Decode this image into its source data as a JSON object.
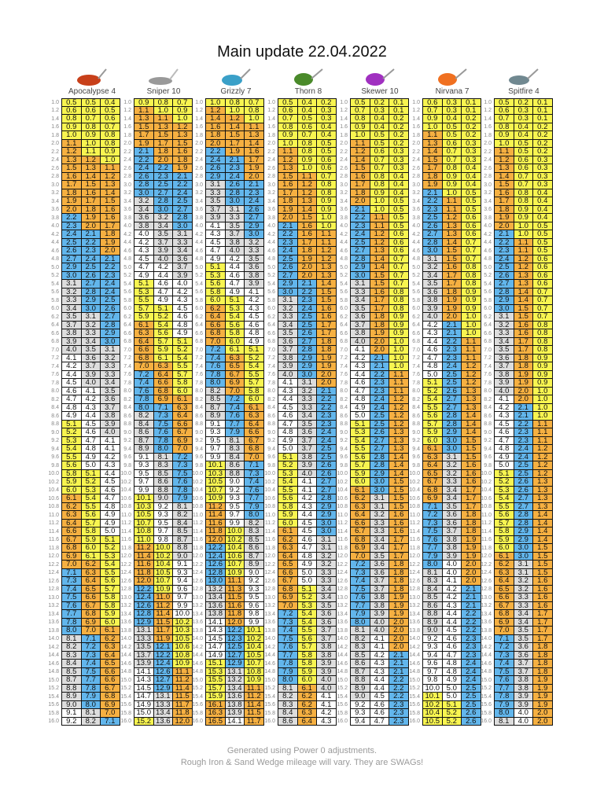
{
  "title": "Main update 22.04.2022",
  "clubs": [
    {
      "name": "Apocalypse 4",
      "icon": "driver-head-icon",
      "color": "#c8401a"
    },
    {
      "name": "Sniper 10",
      "icon": "wood-head-icon",
      "color": "#999999"
    },
    {
      "name": "Grizzly 7",
      "icon": "hybrid-head-icon",
      "color": "#3aa0c8"
    },
    {
      "name": "Thorn 8",
      "icon": "iron-head-icon",
      "color": "#4a8a2a"
    },
    {
      "name": "Skewer 10",
      "icon": "wedge-head-icon",
      "color": "#a030c0"
    },
    {
      "name": "Nirvana 7",
      "icon": "iron-head-icon",
      "color": "#f07020"
    },
    {
      "name": "Spitfire 4",
      "icon": "wedge-head-icon",
      "color": "#708890"
    }
  ],
  "row_labels": [
    "1.0",
    "1.2",
    "1.4",
    "1.6",
    "1.8",
    "2.0",
    "2.2",
    "2.4",
    "2.6",
    "2.8",
    "3.0",
    "3.2",
    "3.4",
    "3.6",
    "3.8",
    "4.0",
    "4.2",
    "4.4",
    "4.6",
    "4.8",
    "5.0",
    "5.2",
    "5.4",
    "5.6",
    "5.8",
    "6.0",
    "6.2",
    "6.4",
    "6.6",
    "6.8",
    "7.0",
    "7.2",
    "7.4",
    "7.6",
    "7.8",
    "8.0",
    "8.2",
    "8.4",
    "8.6",
    "8.8",
    "9.0",
    "9.2",
    "9.4",
    "9.6",
    "9.8",
    "10.0",
    "10.2",
    "10.4",
    "10.6",
    "10.8",
    "11.0",
    "11.2",
    "11.4",
    "11.6",
    "11.8",
    "12.0",
    "12.2",
    "12.4",
    "12.6",
    "12.8",
    "13.0",
    "13.2",
    "13.4",
    "13.6",
    "13.8",
    "14.0",
    "14.2",
    "14.4",
    "14.6",
    "14.8",
    "15.0",
    "15.2",
    "15.4",
    "15.6",
    "15.8",
    "16.0"
  ],
  "tables": [
    [
      "0.5y 0.5y 0.4y",
      "0.6y 0.6y 0.5y",
      "0.8y 0.7y 0.6y",
      "0.9y 0.8y 0.7y",
      "1.0y 0.9y 0.8y",
      "1.1o 1.0y 0.8y",
      "1.2o 1.1y 0.9y",
      "1.3o 1.2o 1.0y",
      "1.5o 1.3o 1.1o",
      "1.6o 1.4o 1.2o",
      "1.7o 1.5o 1.3o",
      "1.8o 1.6o 1.4o",
      "1.9o 1.7o 1.5o",
      "2.0o 1.8o 1.6o",
      "2.2b 1.9o 1.6o",
      "2.3b 2.0o 1.7o",
      "2.4b 2.1b 1.8o",
      "2.5b 2.2b 1.9o",
      "2.6b 2.3b 2.0o",
      "2.7b 2.4b 2.1b",
      "2.9b 2.5b 2.2b",
      "3.0b 2.6b 2.3b",
      "3.1g 2.7b 2.4b",
      "3.2g 2.8b 2.4b",
      "3.3g 2.9b 2.5b",
      "3.4g 3.0b 2.6b",
      "3.5g 3.1g 2.7b",
      "3.7g 3.2g 2.8b",
      "3.8g 3.3g 2.9b",
      "3.9g 3.4g 3.0b",
      "4.0g 3.5g 3.1g",
      "4.1w 3.6g 3.2g",
      "4.2w 3.7g 3.3g",
      "4.4w 3.9g 3.3g",
      "4.5w 4.0g 3.4g",
      "4.6w 4.1w 3.5g",
      "4.7w 4.2w 3.6g",
      "4.8w 4.3w 3.7g",
      "4.9w 4.4w 3.8g",
      "5.1y 4.5w 3.9g",
      "5.2y 4.6w 4.0g",
      "5.3y 4.7w 4.1w",
      "5.4y 4.8w 4.1w",
      "5.5y 4.9w 4.2w",
      "5.6y 5.0w 4.3w",
      "5.8y 5.1y 4.4w",
      "5.9y 5.2y 4.5w",
      "6.0y 5.3y 4.6w",
      "6.1o 5.4y 4.7w",
      "6.2o 5.5y 4.8w",
      "6.3o 5.6y 4.9w",
      "6.4o 5.7y 4.9w",
      "6.6o 5.8y 5.0w",
      "6.7o 5.9y 5.1y",
      "6.8o 6.0y 5.2y",
      "6.9o 6.1y 5.3y",
      "7.0o 6.2o 5.4y",
      "7.1b 6.3o 5.5y",
      "7.3b 6.4o 5.6y",
      "7.4b 6.5o 5.7y",
      "7.5b 6.6o 5.8y",
      "7.6b 6.7o 5.8y",
      "7.7b 6.8o 5.9y",
      "7.8b 6.9o 6.0y",
      "8.0b 7.0o 6.1o",
      "8.1g 7.1b 6.2o",
      "8.2g 7.2b 6.3o",
      "8.3g 7.3b 6.4o",
      "8.4g 7.4b 6.5o",
      "8.5g 7.5b 6.6o",
      "8.7g 7.7b 6.6o",
      "8.8g 7.8b 6.7o",
      "8.9g 7.9b 6.8o",
      "9.0g 8.0b 6.9o",
      "9.1w 8.1g 7.0o",
      "9.2w 8.2g 7.1b"
    ],
    [
      "0.9y 0.8y 0.7y",
      "1.1o 1.0y 0.9y",
      "1.3o 1.1o 1.0y",
      "1.5o 1.3o 1.2o",
      "1.7o 1.5o 1.3o",
      "1.9o 1.7o 1.5o",
      "2.1b 1.8o 1.6o",
      "2.2b 2.0o 1.8o",
      "2.4b 2.2b 1.9o",
      "2.6b 2.3b 2.1b",
      "2.8b 2.5b 2.2b",
      "3.0b 2.7b 2.4b",
      "3.2g 2.8b 2.5b",
      "3.4g 3.0b 2.7b",
      "3.6g 3.2g 2.8b",
      "3.8g 3.4g 3.0b",
      "4.0w 3.5g 3.1g",
      "4.2w 3.7g 3.3g",
      "4.3w 3.9g 3.4g",
      "4.5w 4.0g 3.6g",
      "4.7w 4.2w 3.7g",
      "4.9w 4.4w 3.9g",
      "5.1y 4.6w 4.0w",
      "5.3y 4.7w 4.2w",
      "5.5y 4.9w 4.3w",
      "5.7y 5.1y 4.5w",
      "5.9y 5.2y 4.6w",
      "6.1o 5.4y 4.8w",
      "6.3o 5.6y 4.9w",
      "6.4o 5.7y 5.1y",
      "6.6o 5.9y 5.2y",
      "6.8o 6.1y 5.4y",
      "7.0o 6.3o 5.5y",
      "7.2b 6.4o 5.7y",
      "7.4b 6.6o 5.8y",
      "7.6b 6.8o 6.0y",
      "7.8b 6.9o 6.1o",
      "8.0b 7.1b 6.3o",
      "8.2g 7.3b 6.4o",
      "8.4g 7.5b 6.6o",
      "8.6g 7.6b 6.7o",
      "8.7g 7.8b 6.9o",
      "8.9g 8.0b 7.0o",
      "9.1w 8.1g 7.2b",
      "9.3w 8.3g 7.3b",
      "9.5w 8.5g 7.5b",
      "9.7w 8.6g 7.6b",
      "9.9w 8.8g 7.8b",
      "10.1y 9.0g 7.9b",
      "10.3y 9.2w 8.1g",
      "10.5y 9.3w 8.2g",
      "10.7y 9.5w 8.4g",
      "10.8y 9.7w 8.5g",
      "11.0y 9.8w 8.7g",
      "11.2o 10.0y 8.8g",
      "11.4o 10.2y 9.0g",
      "11.6o 10.4y 9.1w",
      "11.8o 10.5y 9.3w",
      "12.0o 10.7y 9.4w",
      "12.2b 10.9y 9.6w",
      "12.4b 11.0o 9.7w",
      "12.6b 11.2o 9.9w",
      "12.8b 11.4o 10.0w",
      "12.9b 11.5o 10.2y",
      "13.1g 11.7o 10.3y",
      "13.3g 11.9o 10.5y",
      "13.5g 12.1b 10.6y",
      "13.7g 12.2b 10.8y",
      "13.9g 12.4b 10.9y",
      "14.1w 12.6b 11.1o",
      "14.3w 12.7b 11.2o",
      "14.5w 12.9b 11.4o",
      "14.7w 13.1g 11.5o",
      "14.9w 13.3g 11.7o",
      "15.0w 13.4g 11.8o",
      "15.2y 13.6g 12.0o"
    ],
    [
      "1.0y 0.8y 0.7y",
      "1.2o 1.0y 0.8y",
      "1.4o 1.2o 1.0y",
      "1.6o 1.4o 1.1o",
      "1.8o 1.5o 1.3o",
      "2.0o 1.7o 1.4o",
      "2.2b 1.9o 1.6o",
      "2.4b 2.1b 1.7o",
      "2.6b 2.3b 1.9o",
      "2.9b 2.4b 2.0o",
      "3.1g 2.6b 2.1b",
      "3.3g 2.8b 2.3b",
      "3.5g 3.0b 2.4b",
      "3.7g 3.1g 2.6b",
      "3.9g 3.3g 2.7b",
      "4.1w 3.5g 2.9b",
      "4.3w 3.7g 3.0b",
      "4.5w 3.8g 3.2g",
      "4.7w 4.0g 3.3g",
      "4.9w 4.2w 3.5g",
      "5.1y 4.4w 3.6g",
      "5.3y 4.6w 3.8g",
      "5.6y 4.7w 3.9g",
      "5.8y 4.9w 4.1w",
      "6.0y 5.1y 4.2w",
      "6.2o 5.3y 4.3w",
      "6.4o 5.4y 4.5w",
      "6.6o 5.6y 4.6w",
      "6.8o 5.8y 4.8w",
      "7.0o 6.0y 4.9w",
      "7.2b 6.1y 5.1y",
      "7.4b 6.3o 5.2y",
      "7.6b 6.5o 5.4y",
      "7.8b 6.7o 5.5y",
      "8.0b 6.9o 5.7y",
      "8.2g 7.0o 5.8y",
      "8.5g 7.2b 6.0y",
      "8.7g 7.4b 6.1o",
      "8.9g 7.6b 6.3o",
      "9.1w 7.7b 6.4o",
      "9.3w 7.9b 6.6o",
      "9.5w 8.1g 6.7o",
      "9.7w 8.3g 6.8o",
      "9.9w 8.4g 7.0o",
      "10.1y 8.6g 7.1b",
      "10.3y 8.8g 7.3b",
      "10.5y 9.0w 7.4b",
      "10.7y 9.2w 7.6b",
      "10.9y 9.3w 7.7b",
      "11.2o 9.5w 7.9b",
      "11.4o 9.7w 8.0b",
      "11.6o 9.9w 8.2g",
      "11.8o 10.0y 8.3g",
      "12.0o 10.2y 8.5g",
      "12.2b 10.4y 8.6g",
      "12.4b 10.6y 8.7g",
      "12.6b 10.7y 8.9g",
      "12.8b 10.9y 9.0w",
      "13.0b 11.1o 9.2w",
      "13.2g 11.3o 9.3w",
      "13.4g 11.5o 9.5w",
      "13.6g 11.6o 9.6w",
      "13.8g 11.8o 9.8w",
      "14.1w 12.0o 9.9w",
      "14.3w 12.2b 10.1y",
      "14.5w 12.3b 10.2y",
      "14.7w 12.5b 10.4y",
      "14.9w 12.7b 10.5y",
      "15.1y 12.9b 10.7y",
      "15.3y 13.1g 10.8y",
      "15.5y 13.2g 10.9y",
      "15.7y 13.4g 11.1o",
      "15.9y 13.6g 11.2o",
      "16.1o 13.8g 11.4o",
      "16.3o 13.9g 11.5o",
      "16.5o 14.1w 11.7o"
    ],
    [
      "0.5y 0.4y 0.2y",
      "0.6y 0.4y 0.3y",
      "0.7y 0.5y 0.3y",
      "0.8y 0.6y 0.4y",
      "0.9y 0.7y 0.4y",
      "1.0y 0.8y 0.5y",
      "1.1o 0.8y 0.5y",
      "1.2o 0.9y 0.6y",
      "1.3o 1.0y 0.6y",
      "1.5o 1.1o 0.7y",
      "1.6o 1.2o 0.8y",
      "1.7o 1.2o 0.8y",
      "1.8o 1.3o 0.9y",
      "1.9o 1.4o 0.9y",
      "2.0o 1.5o 1.0y",
      "2.1b 1.6o 1.0y",
      "2.2b 1.6o 1.1o",
      "2.3b 1.7o 1.1o",
      "2.4b 1.8o 1.2o",
      "2.5b 1.9o 1.2o",
      "2.6b 2.0o 1.3o",
      "2.7b 2.0o 1.3o",
      "2.9b 2.1b 1.4o",
      "3.0b 2.2b 1.5o",
      "3.1g 2.3b 1.5o",
      "3.2g 2.4b 1.6o",
      "3.3g 2.5b 1.6o",
      "3.4g 2.5b 1.7o",
      "3.5g 2.6b 1.7o",
      "3.6g 2.7b 1.8o",
      "3.7g 2.8b 1.8o",
      "3.8g 2.9b 1.9o",
      "3.9g 2.9b 1.9o",
      "4.0g 3.0b 2.0o",
      "4.1w 3.1g 2.0o",
      "4.3w 3.2g 2.1b",
      "4.4w 3.3g 2.2b",
      "4.5w 3.3g 2.2b",
      "4.6w 3.4g 2.3b",
      "4.7w 3.5g 2.3b",
      "4.8w 3.6g 2.4b",
      "4.9w 3.7g 2.4b",
      "5.0w 3.7g 2.5b",
      "5.1y 3.8g 2.5b",
      "5.2y 3.9g 2.6b",
      "5.3y 4.0g 2.6b",
      "5.4y 4.1w 2.7b",
      "5.5y 4.1w 2.7b",
      "5.6y 4.2w 2.8b",
      "5.8y 4.3w 2.9b",
      "5.9y 4.4w 2.9b",
      "6.0y 4.5w 3.0b",
      "6.1o 4.5w 3.0b",
      "6.2o 4.6w 3.1g",
      "6.3o 4.7w 3.1g",
      "6.4o 4.8w 3.2g",
      "6.5o 4.9w 3.2g",
      "6.6o 5.0w 3.3g",
      "6.7o 5.0w 3.3g",
      "6.8o 5.1y 3.4g",
      "6.9o 5.2y 3.4g",
      "7.0o 5.3y 3.5g",
      "7.2b 5.4y 3.6g",
      "7.3b 5.4y 3.6g",
      "7.4b 5.5y 3.7g",
      "7.5b 5.6y 3.7g",
      "7.6b 5.7y 3.8g",
      "7.7b 5.8y 3.8g",
      "7.8b 5.8y 3.9g",
      "7.9b 5.9y 3.9g",
      "8.0b 6.0y 4.0g",
      "8.1g 6.1o 4.0g",
      "8.2g 6.2o 4.1w",
      "8.3g 6.2o 4.1w",
      "8.4g 6.3o 4.2w",
      "8.6g 6.4o 4.3w"
    ],
    [
      "0.5y 0.2y 0.1y",
      "0.7y 0.3y 0.1y",
      "0.8y 0.4y 0.2y",
      "0.9y 0.4y 0.2y",
      "1.0y 0.5y 0.2y",
      "1.1o 0.5y 0.2y",
      "1.2o 0.6y 0.3y",
      "1.4o 0.7y 0.3y",
      "1.5o 0.7y 0.3y",
      "1.6o 0.8y 0.4y",
      "1.7o 0.8y 0.4y",
      "1.8o 0.9y 0.4y",
      "2.0o 1.0y 0.5y",
      "2.1b 1.0y 0.5y",
      "2.2b 1.1o 0.5y",
      "2.3b 1.1o 0.5y",
      "2.4b 1.2o 0.6y",
      "2.5b 1.2o 0.6y",
      "2.7b 1.3o 0.6y",
      "2.8b 1.4o 0.7y",
      "2.9b 1.4o 0.7y",
      "3.0b 1.5o 0.7y",
      "3.1g 1.5o 0.7y",
      "3.3g 1.6o 0.8y",
      "3.4g 1.7o 0.8y",
      "3.5g 1.7o 0.8y",
      "3.6g 1.8o 0.9y",
      "3.7g 1.8o 0.9y",
      "3.8g 1.9o 0.9y",
      "4.0g 2.0o 1.0y",
      "4.1w 2.0o 1.0y",
      "4.2w 2.1b 1.0y",
      "4.3w 2.1b 1.0y",
      "4.4w 2.2b 1.1o",
      "4.6w 2.3b 1.1o",
      "4.7w 2.3b 1.1o",
      "4.8w 2.4b 1.2o",
      "4.9w 2.4b 1.2o",
      "5.0w 2.5b 1.2o",
      "5.1y 2.5b 1.2o",
      "5.3y 2.6b 1.3o",
      "5.4y 2.7b 1.3o",
      "5.5y 2.7b 1.3o",
      "5.6y 2.8b 1.4o",
      "5.7y 2.8b 1.4o",
      "5.9y 2.9b 1.4o",
      "6.0y 3.0b 1.5o",
      "6.1o 3.0b 1.5o",
      "6.2o 3.1g 1.5o",
      "6.3o 3.1g 1.5o",
      "6.4o 3.2g 1.6o",
      "6.6o 3.3g 1.6o",
      "6.7o 3.3g 1.6o",
      "6.8o 3.4g 1.7o",
      "6.9o 3.4g 1.7o",
      "7.0o 3.5g 1.7o",
      "7.2b 3.6g 1.8o",
      "7.3b 3.6g 1.8o",
      "7.4b 3.7g 1.8o",
      "7.5b 3.7g 1.8o",
      "7.6b 3.8g 1.9o",
      "7.7b 3.8g 1.9o",
      "7.9b 3.9g 1.9o",
      "8.0b 4.0g 2.0o",
      "8.1g 4.0g 2.0o",
      "8.2g 4.1w 2.0o",
      "8.3g 4.1w 2.0o",
      "8.5g 4.2w 2.1b",
      "8.6g 4.3w 2.1b",
      "8.7g 4.3w 2.1b",
      "8.8g 4.4w 2.2b",
      "8.9g 4.4w 2.2b",
      "9.0g 4.5w 2.2b",
      "9.2w 4.6w 2.3b",
      "9.3w 4.6w 2.3b",
      "9.4w 4.7w 2.3b"
    ],
    [
      "0.6y 0.3y 0.1y",
      "0.7y 0.3y 0.1y",
      "0.9y 0.4y 0.2y",
      "1.0y 0.5y 0.2y",
      "1.1o 0.5y 0.2y",
      "1.3o 0.6y 0.3y",
      "1.4o 0.7y 0.3y",
      "1.5o 0.7y 0.3y",
      "1.7o 0.8y 0.4y",
      "1.8o 0.9y 0.4y",
      "1.9o 0.9y 0.4y",
      "2.1b 1.0y 0.5y",
      "2.2b 1.1o 0.5y",
      "2.3b 1.1o 0.5y",
      "2.5b 1.2o 0.6y",
      "2.6b 1.3o 0.6y",
      "2.7b 1.3o 0.6y",
      "2.8b 1.4o 0.7y",
      "3.0b 1.5o 0.7y",
      "3.1g 1.5o 0.7y",
      "3.2g 1.6o 0.8y",
      "3.4g 1.7o 0.8y",
      "3.5g 1.7o 0.8y",
      "3.6g 1.8o 0.9y",
      "3.8g 1.9o 0.9y",
      "3.9g 1.9o 0.9y",
      "4.0g 2.0o 1.0y",
      "4.2w 2.1b 1.0y",
      "4.3w 2.1b 1.0y",
      "4.4w 2.2b 1.1o",
      "4.6w 2.3b 1.1o",
      "4.7w 2.3b 1.1o",
      "4.8w 2.4b 1.2o",
      "5.0w 2.5b 1.2o",
      "5.1y 2.5b 1.2o",
      "5.2y 2.6b 1.3o",
      "5.4y 2.7b 1.3o",
      "5.5y 2.7b 1.3o",
      "5.6y 2.8b 1.4o",
      "5.7y 2.8b 1.4o",
      "5.9y 2.9b 1.4o",
      "6.0y 3.0b 1.5o",
      "6.1o 3.0b 1.5o",
      "6.3o 3.1g 1.5o",
      "6.4o 3.2g 1.6o",
      "6.5o 3.2g 1.6o",
      "6.7o 3.3g 1.6o",
      "6.8o 3.4g 1.7o",
      "6.9o 3.4g 1.7o",
      "7.1b 3.5g 1.7o",
      "7.2b 3.6g 1.8o",
      "7.3b 3.6g 1.8o",
      "7.5b 3.7g 1.8o",
      "7.6b 3.8g 1.9o",
      "7.7b 3.8g 1.9o",
      "7.9b 3.9g 1.9o",
      "8.0b 4.0w 2.0o",
      "8.1g 4.0w 2.0o",
      "8.3g 4.1w 2.0o",
      "8.4g 4.2w 2.1b",
      "8.5g 4.2w 2.1b",
      "8.6g 4.3w 2.1b",
      "8.8g 4.4w 2.2b",
      "8.9g 4.4w 2.2b",
      "9.0g 4.5w 2.2b",
      "9.2w 4.6w 2.3b",
      "9.3w 4.6w 2.3b",
      "9.4w 4.7w 2.3b",
      "9.6w 4.8w 2.4b",
      "9.7w 4.8w 2.4b",
      "9.8w 4.9w 2.4b",
      "10.0w 5.0w 2.5b",
      "10.1y 5.0w 2.5b",
      "10.2y 5.1y 2.5b",
      "10.4y 5.2y 2.6b",
      "10.5y 5.2y 2.6b"
    ],
    [
      "0.5y 0.2y 0.1y",
      "0.6y 0.3y 0.1y",
      "0.7y 0.3y 0.1y",
      "0.8y 0.4y 0.2y",
      "0.9y 0.4y 0.2y",
      "1.0y 0.5y 0.2y",
      "1.1o 0.5y 0.2y",
      "1.2o 0.6y 0.3y",
      "1.3o 0.6y 0.3y",
      "1.4o 0.7y 0.3y",
      "1.5o 0.7y 0.3y",
      "1.6o 0.8y 0.4y",
      "1.7o 0.8y 0.4y",
      "1.8o 0.9y 0.4y",
      "1.9o 0.9y 0.4y",
      "2.0o 1.0y 0.5y",
      "2.1b 1.0y 0.5y",
      "2.2b 1.1o 0.5y",
      "2.3b 1.1o 0.5y",
      "2.4b 1.2o 0.6y",
      "2.5b 1.2o 0.6y",
      "2.6b 1.3o 0.6y",
      "2.7b 1.3o 0.6y",
      "2.8b 1.4o 0.7y",
      "2.9b 1.4o 0.7y",
      "3.0b 1.5o 0.7y",
      "3.1g 1.5o 0.7y",
      "3.2g 1.6o 0.8y",
      "3.3g 1.6o 0.8y",
      "3.4g 1.7o 0.8y",
      "3.5g 1.7o 0.8y",
      "3.6g 1.8o 0.9y",
      "3.7g 1.8o 0.9y",
      "3.8g 1.9o 0.9y",
      "3.9g 1.9o 0.9y",
      "4.0g 2.0o 1.0y",
      "4.1w 2.0o 1.0y",
      "4.2w 2.1b 1.0y",
      "4.3w 2.1b 1.0y",
      "4.5w 2.2b 1.1o",
      "4.6w 2.3b 1.1o",
      "4.7w 2.3b 1.1o",
      "4.8w 2.4b 1.2o",
      "4.9w 2.4b 1.2o",
      "5.0w 2.5b 1.2o",
      "5.1y 2.5b 1.2o",
      "5.2y 2.6b 1.3o",
      "5.3y 2.6b 1.3o",
      "5.4y 2.7b 1.3o",
      "5.5y 2.7b 1.3o",
      "5.6y 2.8b 1.4o",
      "5.7y 2.8b 1.4o",
      "5.8y 2.9b 1.4o",
      "5.9y 2.9b 1.4o",
      "6.0y 3.0b 1.5o",
      "6.1o 3.0b 1.5o",
      "6.2o 3.1g 1.5o",
      "6.3o 3.1g 1.5o",
      "6.4o 3.2g 1.6o",
      "6.5o 3.2g 1.6o",
      "6.6o 3.3g 1.6o",
      "6.7o 3.3g 1.6o",
      "6.8o 3.4g 1.7o",
      "6.9o 3.4g 1.7o",
      "7.0o 3.5g 1.7o",
      "7.1b 3.5g 1.7o",
      "7.2b 3.6g 1.8o",
      "7.3b 3.6g 1.8o",
      "7.4b 3.7g 1.8o",
      "7.5b 3.7g 1.8o",
      "7.6b 3.8g 1.9o",
      "7.7b 3.8g 1.9o",
      "7.8b 3.9g 1.9o",
      "7.9b 3.9g 1.9o",
      "8.0b 4.0w 2.0o",
      "8.1g 4.0w 2.0o"
    ]
  ],
  "legend_colors": {
    "y": "#f8f550",
    "o": "#f6b041",
    "b": "#62b6ec",
    "g": "#dddddd",
    "w": "#ffffff"
  },
  "footer": {
    "line1": "Generated using Power 0 adjustments.",
    "line2": "Rough Iron & Sand Wedge mileage will vary. They are SWAGs!"
  }
}
